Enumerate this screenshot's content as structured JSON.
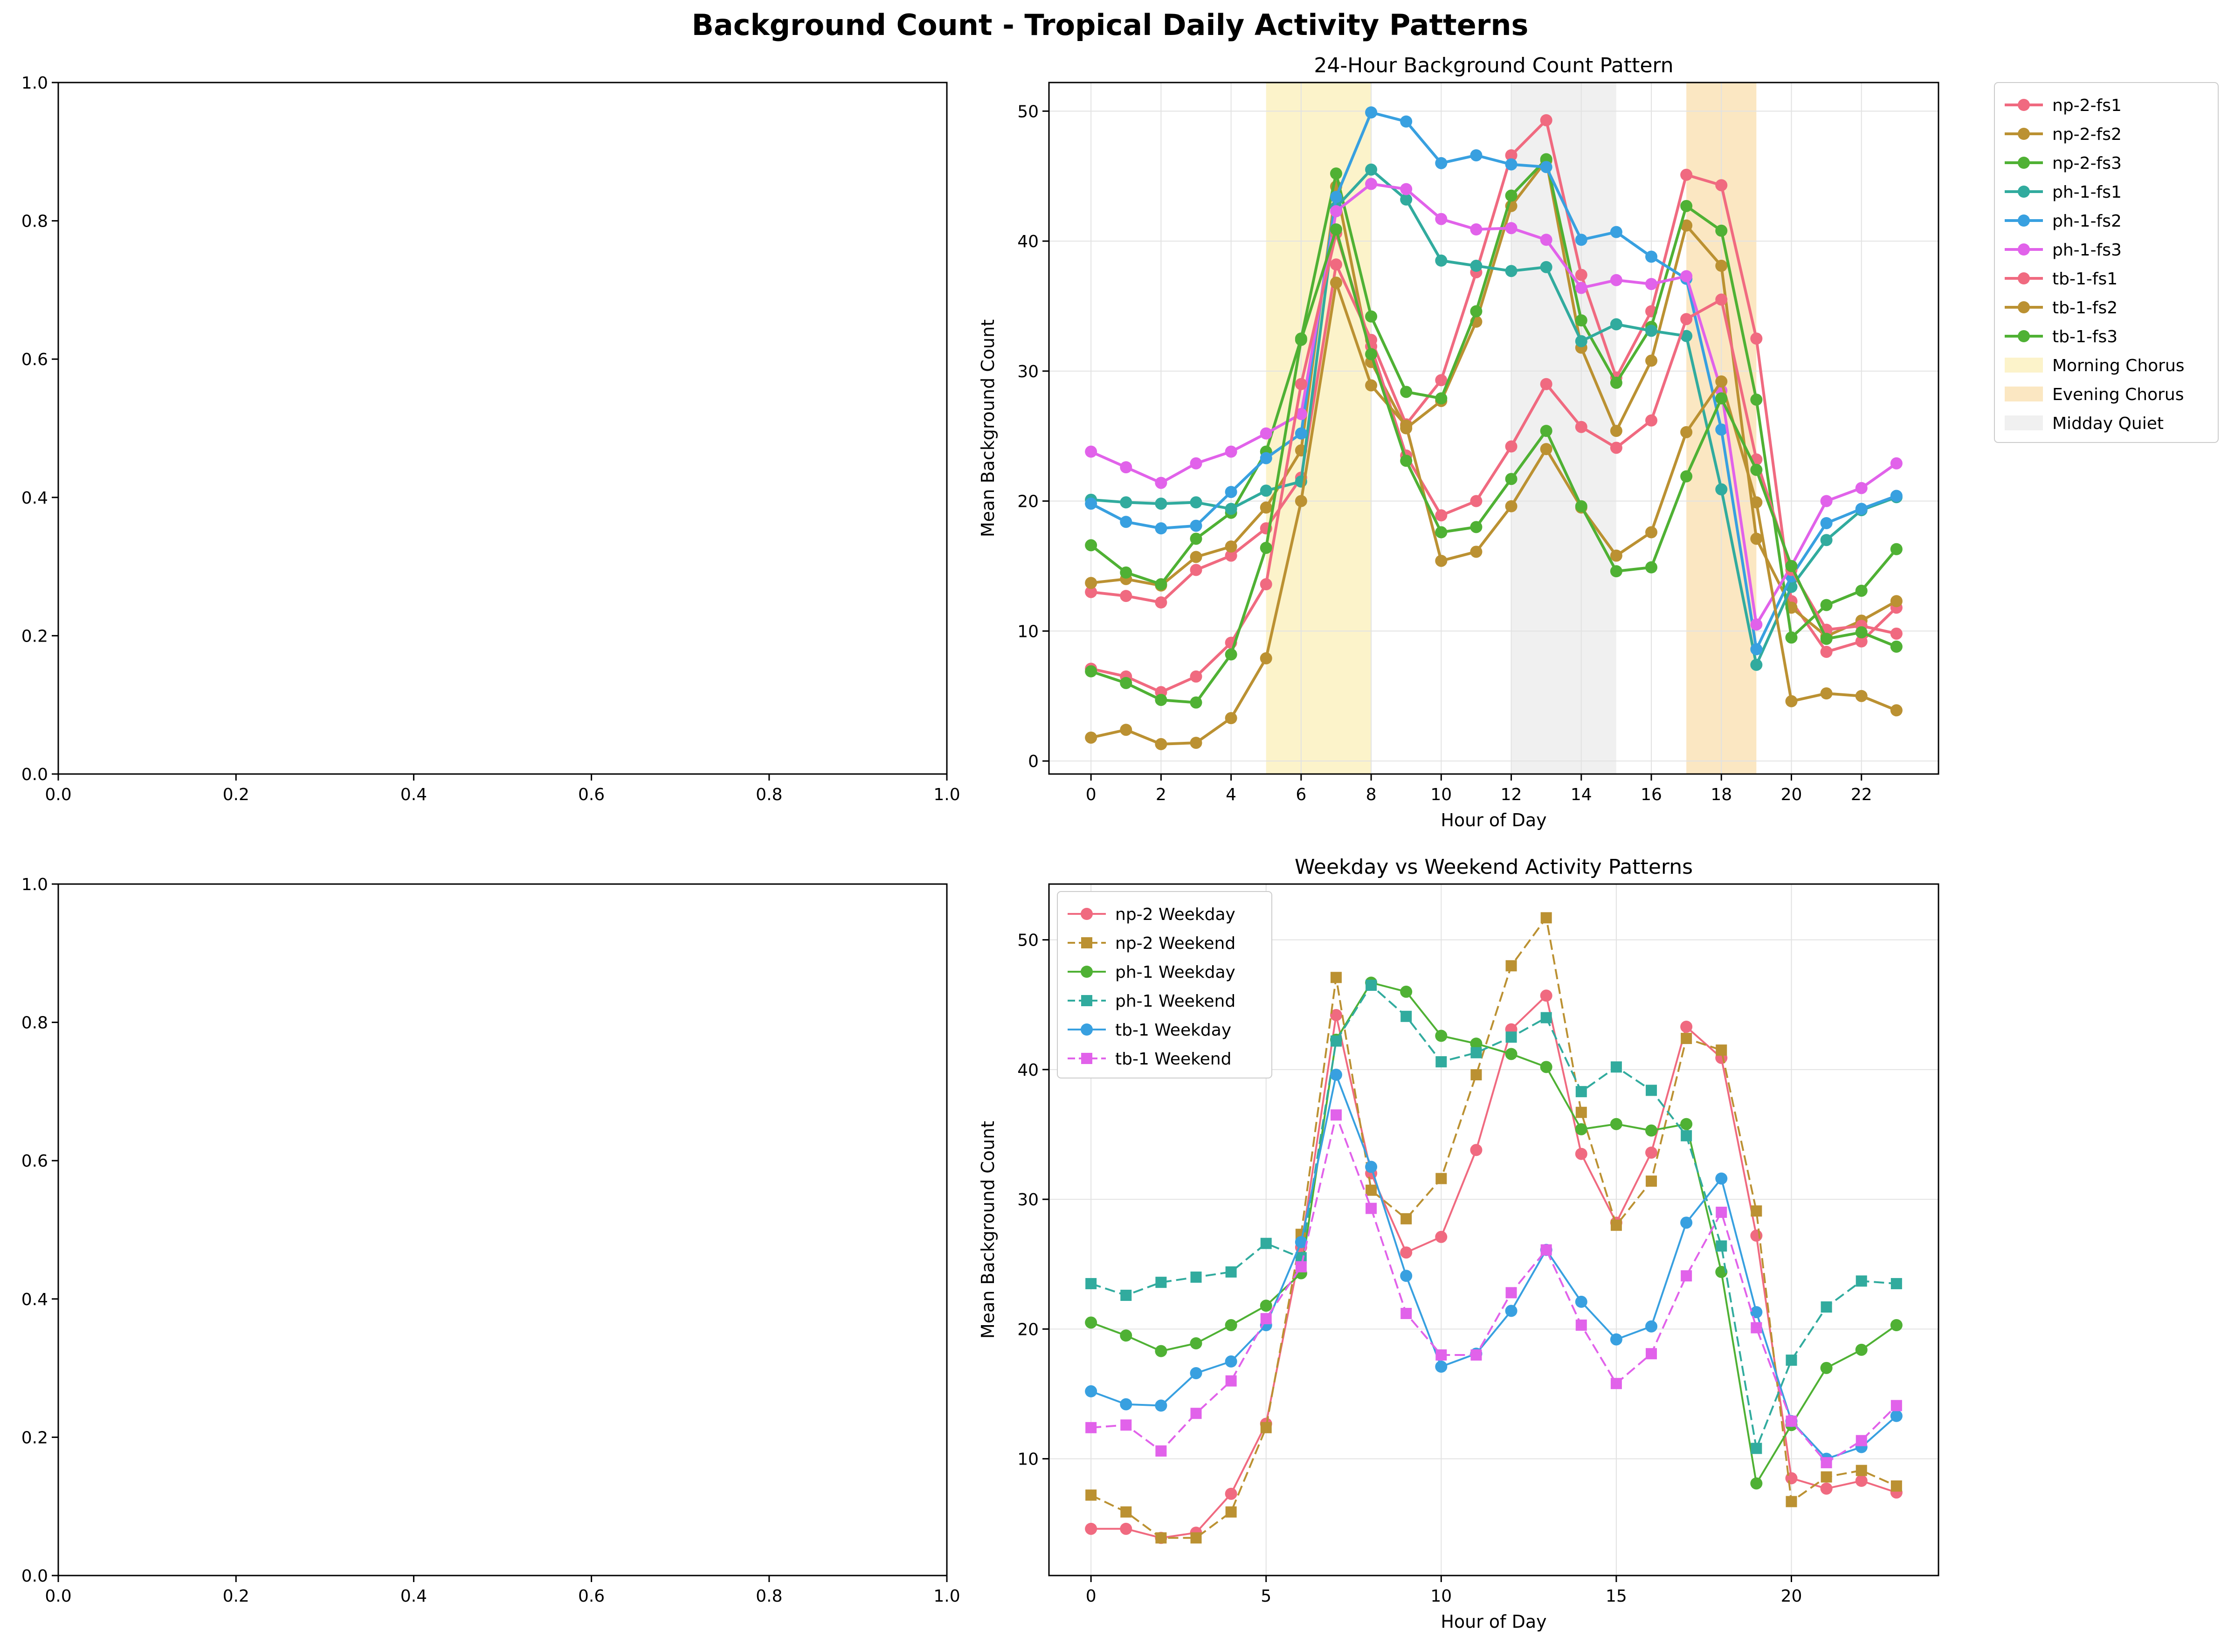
{
  "figure": {
    "title": "Background Count - Tropical Daily Activity Patterns"
  },
  "empty_axes": {
    "ticks": [
      "0.0",
      "0.2",
      "0.4",
      "0.6",
      "0.8",
      "1.0"
    ]
  },
  "colors": {
    "np-2-fs1": "#f06a80",
    "np-2-fs2": "#bb9132",
    "np-2-fs3": "#4fb134",
    "ph-1-fs1": "#31ab9e",
    "ph-1-fs2": "#38a0e0",
    "ph-1-fs3": "#e162ea",
    "morning": "#f7e07a",
    "evening": "#f6c266",
    "midday": "#d9d9d9"
  },
  "chart_data": [
    {
      "type": "line",
      "title": "24-Hour Background Count Pattern",
      "xlabel": "Hour of Day",
      "ylabel": "Mean Background Count",
      "xlim": [
        -1.2,
        24.2
      ],
      "ylim": [
        -1,
        52.2
      ],
      "xticks": [
        0,
        2,
        4,
        6,
        8,
        10,
        12,
        14,
        16,
        18,
        20,
        22
      ],
      "yticks": [
        0,
        10,
        20,
        30,
        40,
        50
      ],
      "grid": true,
      "legend_position": "outside-right",
      "x": [
        0,
        1,
        2,
        3,
        4,
        5,
        6,
        7,
        8,
        9,
        10,
        11,
        12,
        13,
        14,
        15,
        16,
        17,
        18,
        19,
        20,
        21,
        22,
        23
      ],
      "bands": [
        {
          "name": "Morning Chorus",
          "from": 5,
          "to": 8,
          "color": "#f7e07a"
        },
        {
          "name": "Evening Chorus",
          "from": 17,
          "to": 19,
          "color": "#f6c266"
        },
        {
          "name": "Midday Quiet",
          "from": 12,
          "to": 15,
          "color": "#d9d9d9"
        }
      ],
      "series": [
        {
          "name": "np-2-fs1",
          "color": "#f06a80",
          "values": [
            13.0,
            12.7,
            12.2,
            14.7,
            15.8,
            17.9,
            21.8,
            38.2,
            32.4,
            25.9,
            29.3,
            37.6,
            46.6,
            49.3,
            37.4,
            29.5,
            34.6,
            45.1,
            44.3,
            32.5,
            12.3,
            8.4,
            9.2,
            11.8
          ]
        },
        {
          "name": "np-2-fs2",
          "color": "#bb9132",
          "values": [
            13.7,
            14.0,
            13.5,
            15.7,
            16.5,
            19.5,
            23.9,
            44.2,
            30.7,
            25.6,
            27.7,
            33.8,
            42.7,
            46.2,
            31.8,
            25.4,
            30.8,
            41.2,
            38.1,
            17.1,
            11.8,
            9.6,
            10.8,
            12.3
          ]
        },
        {
          "name": "np-2-fs3",
          "color": "#4fb134",
          "values": [
            16.6,
            14.5,
            13.6,
            17.1,
            19.1,
            23.8,
            32.5,
            45.2,
            34.2,
            28.4,
            27.9,
            34.6,
            43.5,
            46.3,
            33.9,
            29.1,
            33.4,
            42.7,
            40.8,
            27.8,
            9.5,
            12.0,
            13.1,
            16.3
          ]
        },
        {
          "name": "ph-1-fs1",
          "color": "#31ab9e",
          "values": [
            20.1,
            19.9,
            19.8,
            19.9,
            19.4,
            20.8,
            21.5,
            42.6,
            45.5,
            43.2,
            38.5,
            38.1,
            37.7,
            38.0,
            32.3,
            33.6,
            33.1,
            32.7,
            20.9,
            7.4,
            13.4,
            17.0,
            19.3,
            20.3
          ]
        },
        {
          "name": "ph-1-fs2",
          "color": "#38a0e0",
          "values": [
            19.8,
            18.4,
            17.9,
            18.1,
            20.7,
            23.3,
            25.2,
            43.4,
            49.9,
            49.2,
            46.0,
            46.6,
            45.9,
            45.7,
            40.1,
            40.7,
            38.8,
            37.1,
            25.5,
            8.6,
            14.2,
            18.3,
            19.4,
            20.4
          ]
        },
        {
          "name": "ph-1-fs3",
          "color": "#e162ea",
          "values": [
            23.8,
            22.6,
            21.4,
            22.9,
            23.8,
            25.2,
            26.7,
            42.3,
            44.4,
            44.0,
            41.7,
            40.9,
            41.0,
            40.1,
            36.4,
            37.0,
            36.7,
            37.3,
            28.5,
            10.5,
            15.0,
            20.0,
            21.0,
            22.9
          ]
        },
        {
          "name": "tb-1-fs1",
          "color": "#f06a80",
          "values": [
            7.1,
            6.5,
            5.3,
            6.5,
            9.1,
            13.6,
            29.0,
            40.6,
            31.9,
            23.5,
            18.9,
            20.0,
            24.2,
            29.0,
            25.7,
            24.1,
            26.2,
            34.0,
            35.5,
            23.2,
            14.7,
            10.1,
            10.4,
            9.8
          ]
        },
        {
          "name": "tb-1-fs2",
          "color": "#bb9132",
          "values": [
            1.8,
            2.4,
            1.3,
            1.4,
            3.3,
            7.9,
            20.0,
            36.8,
            28.9,
            25.8,
            15.4,
            16.1,
            19.6,
            24.0,
            19.5,
            15.8,
            17.6,
            25.3,
            29.2,
            19.9,
            4.6,
            5.2,
            5.0,
            3.9
          ]
        },
        {
          "name": "tb-1-fs3",
          "color": "#4fb134",
          "values": [
            6.9,
            6.0,
            4.7,
            4.5,
            8.2,
            16.4,
            32.4,
            40.9,
            31.3,
            23.1,
            17.6,
            18.0,
            21.7,
            25.4,
            19.6,
            14.6,
            14.9,
            21.9,
            27.9,
            22.4,
            15.0,
            9.4,
            9.9,
            8.8
          ]
        }
      ]
    },
    {
      "type": "line",
      "title": "Weekday vs Weekend Activity Patterns",
      "xlabel": "Hour of Day",
      "ylabel": "Mean Background Count",
      "xlim": [
        -1.2,
        24.2
      ],
      "ylim": [
        1.0,
        54.3
      ],
      "xticks": [
        0,
        5,
        10,
        15,
        20
      ],
      "yticks": [
        10,
        20,
        30,
        40,
        50
      ],
      "grid": true,
      "legend_position": "top-left",
      "x": [
        0,
        1,
        2,
        3,
        4,
        5,
        6,
        7,
        8,
        9,
        10,
        11,
        12,
        13,
        14,
        15,
        16,
        17,
        18,
        19,
        20,
        21,
        22,
        23
      ],
      "series": [
        {
          "name": "np-2 Weekday",
          "color": "#f06a80",
          "dashed": false,
          "marker": "circle",
          "values": [
            4.6,
            4.6,
            3.9,
            4.3,
            7.3,
            12.7,
            26.3,
            44.2,
            32.0,
            25.9,
            27.1,
            33.8,
            43.1,
            45.7,
            33.5,
            28.2,
            33.6,
            43.3,
            40.9,
            27.2,
            8.5,
            7.7,
            8.3,
            7.4
          ]
        },
        {
          "name": "np-2 Weekend",
          "color": "#bb9132",
          "dashed": true,
          "marker": "square",
          "values": [
            7.2,
            5.9,
            3.9,
            3.9,
            5.9,
            12.4,
            27.3,
            47.1,
            30.7,
            28.5,
            31.6,
            39.6,
            48.0,
            51.7,
            36.7,
            28.0,
            31.4,
            42.4,
            41.5,
            29.1,
            6.7,
            8.6,
            9.1,
            7.9
          ]
        },
        {
          "name": "ph-1 Weekday",
          "color": "#4fb134",
          "dashed": false,
          "marker": "circle",
          "values": [
            20.5,
            19.5,
            18.3,
            18.9,
            20.3,
            21.8,
            24.3,
            42.3,
            46.7,
            46.0,
            42.6,
            42.0,
            41.2,
            40.2,
            35.4,
            35.8,
            35.3,
            35.8,
            24.4,
            8.1,
            12.6,
            17.0,
            18.4,
            20.3
          ]
        },
        {
          "name": "ph-1 Weekend",
          "color": "#31ab9e",
          "dashed": true,
          "marker": "square",
          "values": [
            23.5,
            22.6,
            23.6,
            24.0,
            24.4,
            26.6,
            25.5,
            42.2,
            46.5,
            44.1,
            40.6,
            41.3,
            42.5,
            44.0,
            38.3,
            40.2,
            38.4,
            34.9,
            26.4,
            10.8,
            17.6,
            21.7,
            23.7,
            23.5
          ]
        },
        {
          "name": "tb-1 Weekday",
          "color": "#38a0e0",
          "dashed": false,
          "marker": "circle",
          "values": [
            15.2,
            14.2,
            14.1,
            16.6,
            17.5,
            20.3,
            26.7,
            39.6,
            32.5,
            24.1,
            17.1,
            18.1,
            21.4,
            26.1,
            22.1,
            19.2,
            20.2,
            28.2,
            31.6,
            21.3,
            12.9,
            10.0,
            10.9,
            13.3
          ]
        },
        {
          "name": "tb-1 Weekend",
          "color": "#e162ea",
          "dashed": true,
          "marker": "square",
          "values": [
            12.4,
            12.6,
            10.6,
            13.5,
            16.0,
            20.8,
            24.8,
            36.5,
            29.3,
            21.2,
            18.0,
            18.0,
            22.8,
            26.1,
            20.3,
            15.8,
            18.1,
            24.1,
            29.0,
            20.1,
            12.9,
            9.7,
            11.4,
            14.1
          ]
        }
      ]
    }
  ]
}
